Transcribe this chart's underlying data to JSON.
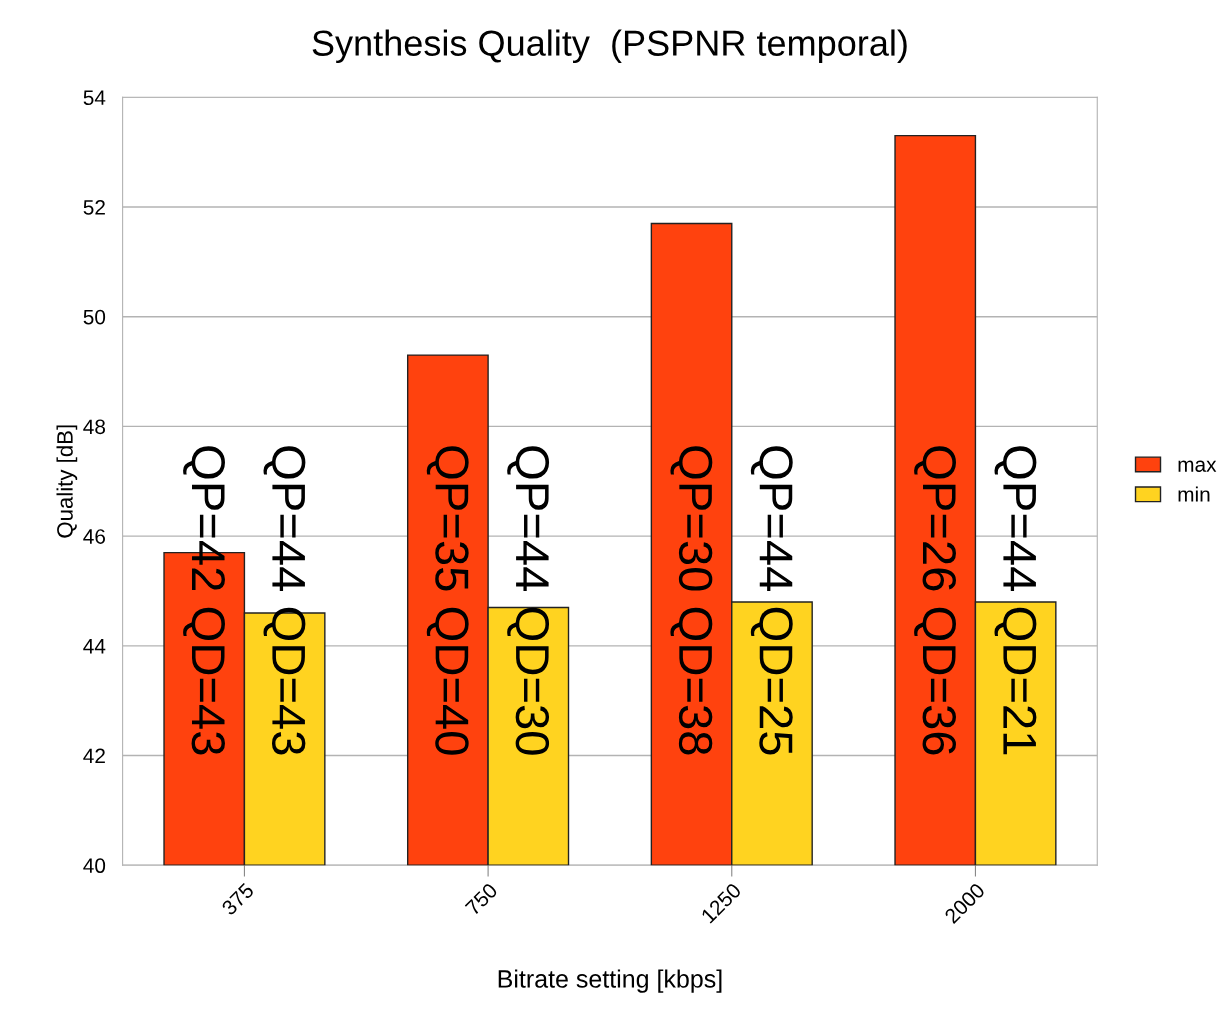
{
  "chart_data": {
    "type": "bar",
    "title": "Synthesis Quality  (PSPNR temporal)",
    "xlabel": "Bitrate setting [kbps]",
    "ylabel": "Quality [dB]",
    "categories": [
      "375",
      "750",
      "1250",
      "2000"
    ],
    "series": [
      {
        "name": "max",
        "color": "#ff420e",
        "values": [
          45.7,
          49.3,
          51.7,
          53.3
        ],
        "value_labels": [
          "QP=42 QD=43",
          "QP=35 QD=40",
          "QP=30 QD=38",
          "QP=26 QD=36"
        ]
      },
      {
        "name": "min",
        "color": "#ffd320",
        "values": [
          44.6,
          44.7,
          44.8,
          44.8
        ],
        "value_labels": [
          "QP=44 QD=43",
          "QP=44 QD=30",
          "QP=44 QD=25",
          "QP=44 QD=21"
        ]
      }
    ],
    "ylim": [
      40,
      54
    ],
    "yticks": [
      40,
      42,
      44,
      46,
      48,
      50,
      52,
      54
    ],
    "grid": "y",
    "legend": "right"
  }
}
